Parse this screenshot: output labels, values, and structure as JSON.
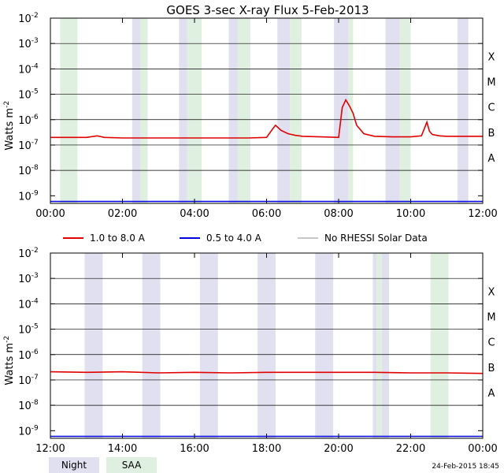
{
  "title": "GOES 3-sec X-ray Flux    5-Feb-2013",
  "ylabel_base": "Watts m",
  "ylabel_exp": "-2",
  "y_tick_exponents": [
    "-2",
    "-3",
    "-4",
    "-5",
    "-6",
    "-7",
    "-8",
    "-9"
  ],
  "y_tick_base": "10",
  "class_labels": [
    "X",
    "M",
    "C",
    "B",
    "A"
  ],
  "legend": [
    {
      "label": "1.0 to 8.0 A",
      "color": "#e00000"
    },
    {
      "label": "0.5 to 4.0 A",
      "color": "#0000e0"
    },
    {
      "label": "No RHESSI Solar Data",
      "color": "#909090"
    }
  ],
  "shade_legend": [
    {
      "label": "Night",
      "color": "#e0e0f0"
    },
    {
      "label": "SAA",
      "color": "#e0f0e0"
    }
  ],
  "footer": "24-Feb-2015 18:45",
  "chart_data": [
    {
      "type": "line",
      "panel": "top",
      "x_ticks": [
        "00:00",
        "02:00",
        "04:00",
        "06:00",
        "08:00",
        "10:00",
        "12:00"
      ],
      "xlim_hours": [
        0,
        12
      ],
      "ylim_log10": [
        -9.3,
        -2
      ],
      "y_scale": "log",
      "grid": true,
      "night": [
        [
          2.27,
          2.5
        ],
        [
          3.57,
          3.8
        ],
        [
          4.95,
          5.2
        ],
        [
          6.3,
          6.65
        ],
        [
          7.87,
          8.27
        ],
        [
          9.3,
          9.7
        ],
        [
          11.3,
          11.6
        ]
      ],
      "saa": [
        [
          0.27,
          0.75
        ],
        [
          2.5,
          2.7
        ],
        [
          3.8,
          4.2
        ],
        [
          5.2,
          5.55
        ],
        [
          6.65,
          6.97
        ],
        [
          8.27,
          8.4
        ],
        [
          9.7,
          10.0
        ]
      ],
      "series": [
        {
          "name": "1.0 to 8.0 A",
          "color": "#e00000",
          "x": [
            0,
            0.5,
            1,
            1.3,
            1.5,
            2,
            2.5,
            3,
            3.5,
            4,
            4.5,
            5,
            5.5,
            6,
            6.18,
            6.25,
            6.4,
            6.6,
            6.8,
            7,
            7.5,
            8,
            8.1,
            8.2,
            8.3,
            8.4,
            8.5,
            8.7,
            9,
            9.5,
            10,
            10.3,
            10.45,
            10.52,
            10.6,
            10.8,
            11,
            11.5,
            12
          ],
          "y": [
            2e-07,
            2e-07,
            2e-07,
            2.3e-07,
            2e-07,
            1.9e-07,
            1.9e-07,
            1.9e-07,
            1.9e-07,
            1.9e-07,
            1.9e-07,
            1.9e-07,
            1.9e-07,
            2e-07,
            4.5e-07,
            6e-07,
            3.8e-07,
            2.8e-07,
            2.4e-07,
            2.2e-07,
            2.1e-07,
            2e-07,
            3e-06,
            6e-06,
            3.5e-06,
            1.8e-06,
            6e-07,
            2.8e-07,
            2.2e-07,
            2.1e-07,
            2.1e-07,
            2.3e-07,
            8e-07,
            3.5e-07,
            2.6e-07,
            2.3e-07,
            2.2e-07,
            2.2e-07,
            2.2e-07
          ]
        },
        {
          "name": "0.5 to 4.0 A",
          "color": "#0000e0",
          "x": [
            0,
            12
          ],
          "y": [
            6e-10,
            6e-10
          ]
        }
      ]
    },
    {
      "type": "line",
      "panel": "bottom",
      "x_ticks": [
        "12:00",
        "14:00",
        "16:00",
        "18:00",
        "20:00",
        "22:00",
        "00:00"
      ],
      "xlim_hours": [
        12,
        24
      ],
      "ylim_log10": [
        -9.3,
        -2
      ],
      "y_scale": "log",
      "grid": true,
      "night": [
        [
          12.95,
          13.45
        ],
        [
          14.55,
          15.05
        ],
        [
          16.15,
          16.65
        ],
        [
          17.75,
          18.25
        ],
        [
          19.35,
          19.85
        ],
        [
          20.95,
          21.05
        ],
        [
          21.2,
          21.4
        ]
      ],
      "saa": [
        [
          21.05,
          21.2
        ],
        [
          22.55,
          23.05
        ]
      ],
      "series": [
        {
          "name": "1.0 to 8.0 A",
          "color": "#e00000",
          "x": [
            12,
            13,
            14,
            15,
            16,
            17,
            18,
            19,
            20,
            21,
            22,
            23,
            24
          ],
          "y": [
            2.1e-07,
            2e-07,
            2.1e-07,
            1.9e-07,
            2e-07,
            1.9e-07,
            2e-07,
            2e-07,
            2e-07,
            2e-07,
            1.9e-07,
            1.9e-07,
            1.8e-07
          ]
        },
        {
          "name": "0.5 to 4.0 A",
          "color": "#0000e0",
          "x": [
            12,
            24
          ],
          "y": [
            6e-10,
            6e-10
          ]
        }
      ]
    }
  ]
}
